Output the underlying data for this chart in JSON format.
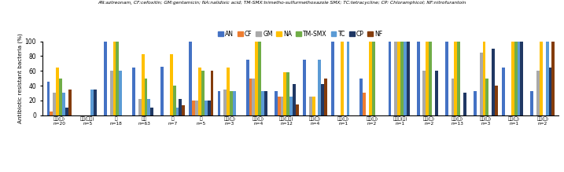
{
  "title": "AN:aztreonam, CF:cefoxitin; GM:gentamicin; NA:nalidixic acid; TM-SMX:trimetho-sulfurmethoxazole SMX; TC:tetracycline; CP: Chloramphicol; NF:nitrofurantoin",
  "ylabel": "Antibiotic resistant bacteria (%)",
  "legend_labels": [
    "AN",
    "CF",
    "GM",
    "NA",
    "TM-SMX",
    "TC",
    "CP",
    "NF"
  ],
  "colors": [
    "#4472C4",
    "#ED7D31",
    "#A9A9A9",
    "#FFC000",
    "#70AD47",
    "#4472C4",
    "#203864",
    "#843C0C"
  ],
  "legend_colors": [
    "#4472C4",
    "#ED7D31",
    "#A9A9A9",
    "#FFC000",
    "#70AD47",
    "#5B9BD5",
    "#203864",
    "#843C0C"
  ],
  "bar_colors": [
    "#4472C4",
    "#ED7D31",
    "#A9A9A9",
    "#FFC000",
    "#70AD47",
    "#5B9BD5",
    "#203864",
    "#843C0C"
  ],
  "categories": [
    "사람(개)\nn=20",
    "사람(해지)\nn=5",
    "개\nn=18",
    "돼지\nn=63",
    "닭\nn=7",
    "소\nn=5",
    "병원(개)\nn=3",
    "주거(개)\nn=4",
    "축사(돼지)\nn=12",
    "농기(닭)\nn=4",
    "축사(소)\nn=1",
    "하수(닭)\nn=2",
    "도축장(닭)\nn=1",
    "유통(소)\nn=2",
    "식품(소)\nn=13",
    "식품(닭)\nn=3",
    "축사(닭)\nn=1",
    "토양(소)\nn=2"
  ],
  "data": [
    [
      45,
      5,
      30,
      65,
      50,
      30,
      10,
      35
    ],
    [
      0,
      0,
      0,
      0,
      0,
      35,
      35,
      0
    ],
    [
      100,
      0,
      60,
      100,
      100,
      60,
      0,
      0
    ],
    [
      65,
      0,
      22,
      83,
      50,
      22,
      10,
      0
    ],
    [
      66,
      0,
      0,
      83,
      40,
      10,
      22,
      13
    ],
    [
      100,
      20,
      20,
      65,
      60,
      20,
      20,
      60
    ],
    [
      33,
      0,
      35,
      65,
      33,
      33,
      0,
      0
    ],
    [
      75,
      50,
      50,
      100,
      100,
      33,
      33,
      0
    ],
    [
      33,
      25,
      25,
      58,
      58,
      25,
      42,
      15
    ],
    [
      75,
      0,
      25,
      25,
      0,
      75,
      42,
      50
    ],
    [
      100,
      0,
      0,
      100,
      0,
      100,
      0,
      0
    ],
    [
      50,
      30,
      0,
      100,
      100,
      0,
      0,
      0
    ],
    [
      100,
      0,
      100,
      100,
      100,
      100,
      100,
      0
    ],
    [
      100,
      0,
      60,
      100,
      100,
      0,
      60,
      0
    ],
    [
      100,
      0,
      50,
      100,
      100,
      0,
      30,
      0
    ],
    [
      33,
      0,
      85,
      100,
      50,
      0,
      90,
      40
    ],
    [
      65,
      0,
      0,
      100,
      100,
      100,
      100,
      0
    ],
    [
      33,
      0,
      60,
      100,
      0,
      100,
      65,
      100
    ]
  ],
  "ylim": [
    0,
    100
  ],
  "yticks": [
    0,
    20,
    40,
    60,
    80,
    100
  ]
}
